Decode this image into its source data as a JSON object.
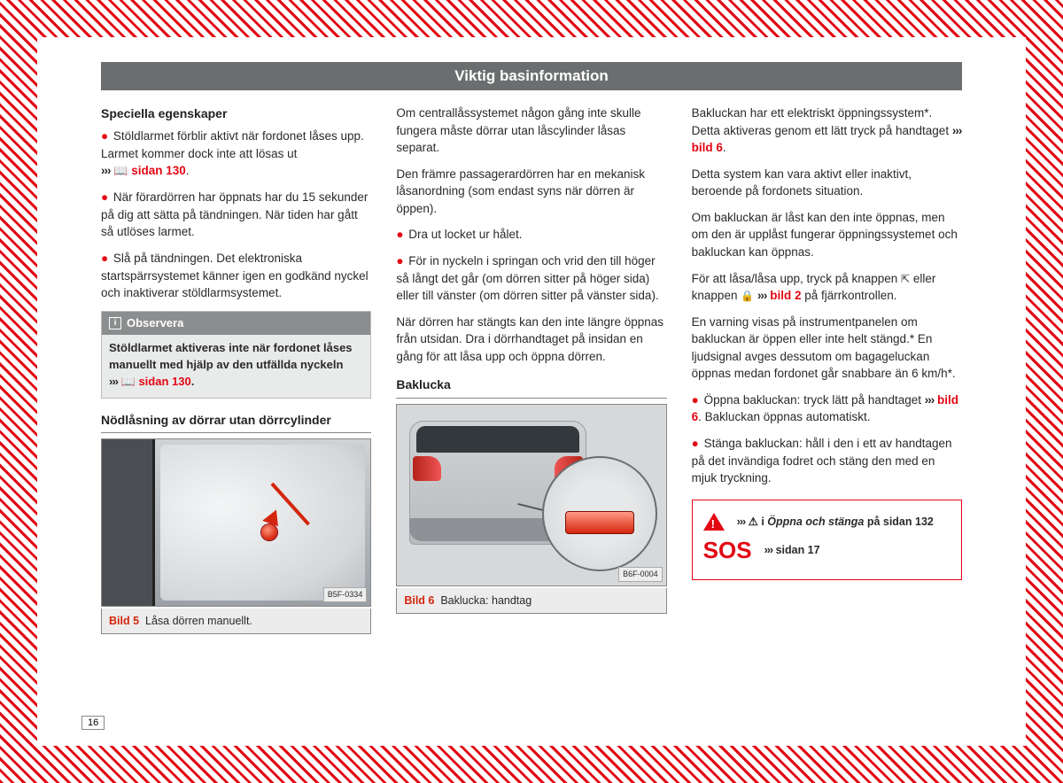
{
  "page_number": "16",
  "header": "Viktig basinformation",
  "col1": {
    "h_special": "Speciella egenskaper",
    "p1a": "Stöldlarmet förblir aktivt när fordonet låses upp. Larmet kommer dock inte att lösas ut",
    "p1_ref": "sidan 130",
    "p2": "När förardörren har öppnats har du 15 sekunder på dig att sätta på tändningen. När tiden har gått så utlöses larmet.",
    "p3": "Slå på tändningen. Det elektroniska startspärrsystemet känner igen en godkänd nyckel och inaktiverar stöldlarmsystemet.",
    "note_title": "Observera",
    "note_body": "Stöldlarmet aktiveras inte när fordonet låses manuellt med hjälp av den utfällda nyckeln",
    "note_ref": "sidan 130",
    "h_emerg": "Nödlåsning av dörrar utan dörrcylinder",
    "fig5_tag": "B5F-0334",
    "fig5_label": "Bild 5",
    "fig5_caption": "Låsa dörren manuellt."
  },
  "col2": {
    "p1": "Om centrallåssystemet någon gång inte skulle fungera måste dörrar utan låscylinder låsas separat.",
    "p2": "Den främre passagerardörren har en mekanisk låsanordning (som endast syns när dörren är öppen).",
    "b1": "Dra ut locket ur hålet.",
    "b2": "För in nyckeln i springan och vrid den till höger så långt det går (om dörren sitter på höger sida) eller till vänster (om dörren sitter på vänster sida).",
    "p3": "När dörren har stängts kan den inte längre öppnas från utsidan. Dra i dörrhandtaget på insidan en gång för att låsa upp och öppna dörren.",
    "h_tail": "Baklucka",
    "fig6_tag": "B6F-0004",
    "fig6_label": "Bild 6",
    "fig6_caption": "Baklucka: handtag"
  },
  "col3": {
    "p1a": "Bakluckan har ett elektriskt öppningssystem*. Detta aktiveras genom ett lätt tryck på handtaget",
    "p1_ref": "bild 6",
    "p2": "Detta system kan vara aktivt eller inaktivt, beroende på fordonets situation.",
    "p3": "Om bakluckan är låst kan den inte öppnas, men om den är upplåst fungerar öppningssystemet och bakluckan kan öppnas.",
    "p4a": "För att låsa/låsa upp, tryck på knappen ",
    "p4b": " eller knappen ",
    "p4_ref": "bild 2",
    "p4c": " på fjärrkontrollen.",
    "p5": "En varning visas på instrumentpanelen om bakluckan är öppen eller inte helt stängd.* En ljudsignal avges dessutom om bagageluckan öppnas medan fordonet går snabbare än 6 km/h*.",
    "b1a": "Öppna bakluckan: tryck lätt på handtaget",
    "b1_ref": "bild 6",
    "b1b": ". Bakluckan öppnas automatiskt.",
    "b2": "Stänga bakluckan: håll i den i ett av handtagen på det invändiga fodret och stäng den med en mjuk tryckning.",
    "sos_line1_pre": "i ",
    "sos_line1_ital": "Öppna och stänga",
    "sos_line1_post": " på sidan 132",
    "sos_label": "SOS",
    "sos_line2": "sidan 17"
  }
}
